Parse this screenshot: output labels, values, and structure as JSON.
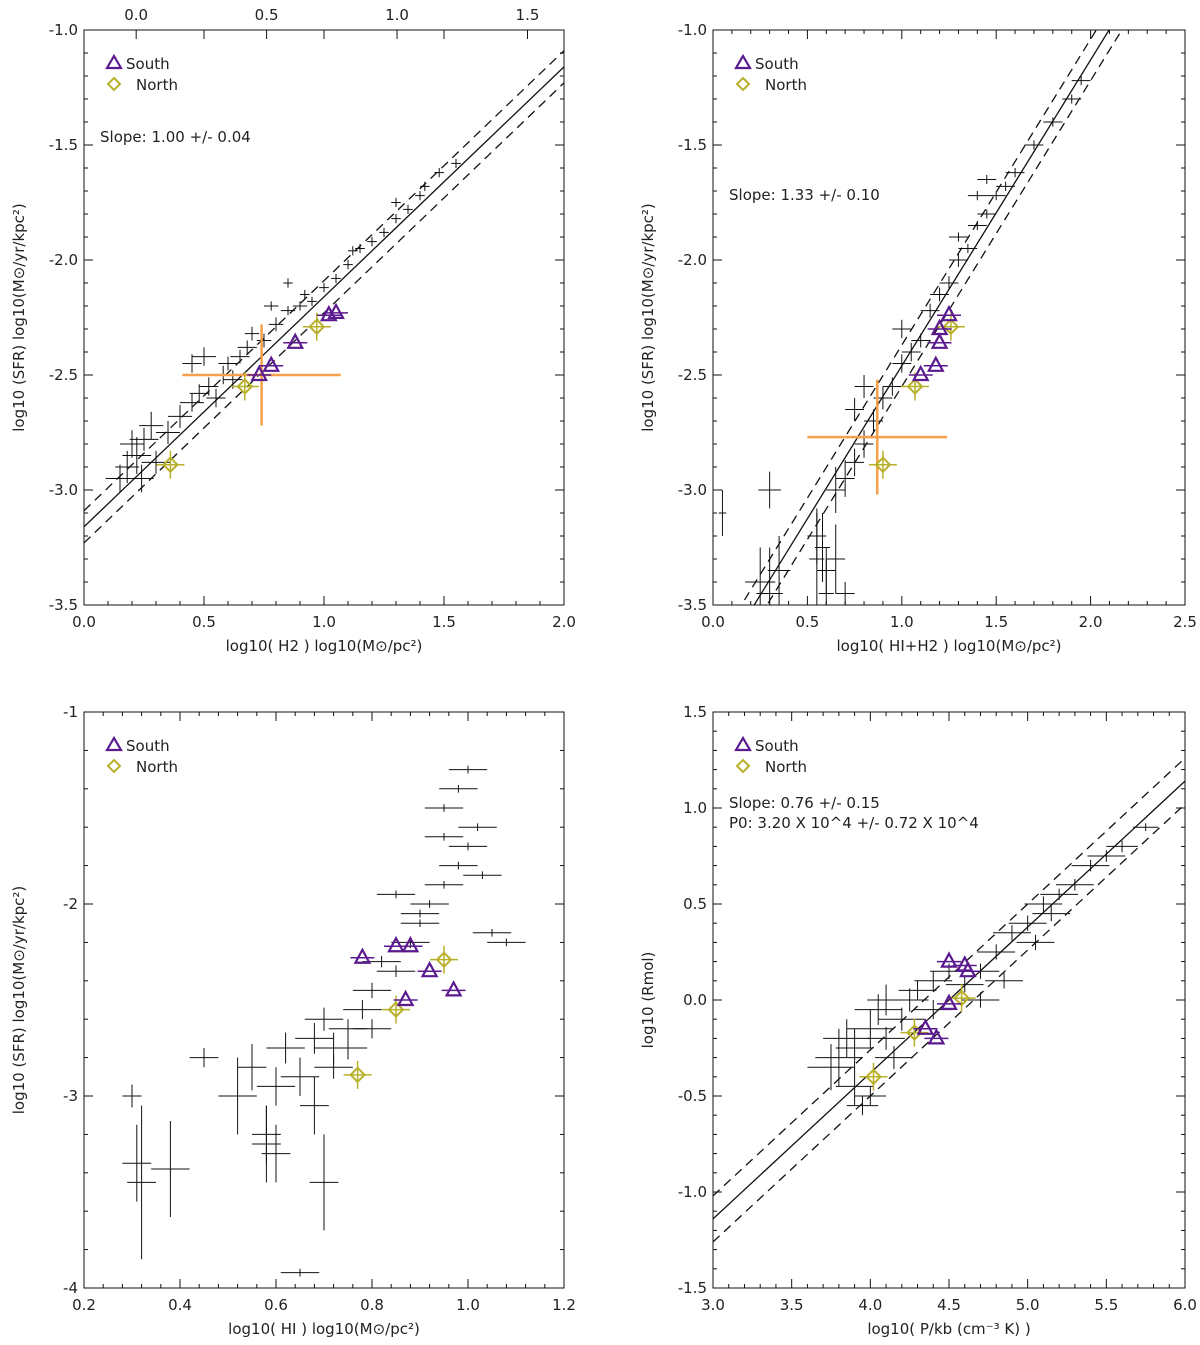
{
  "colors": {
    "south": "#5b1a8f",
    "north": "#b8b02a",
    "highlight": "#f5a04a",
    "data": "#111111"
  },
  "chart_data": [
    {
      "id": "p1",
      "type": "scatter",
      "title": "",
      "xlabel": "log10( H2 )  log10(M⊙/pc²)",
      "ylabel": "log10 (SFR)  log10(M⊙/yr/kpc²)",
      "xlim": [
        0.0,
        2.0
      ],
      "ylim": [
        -3.5,
        -1.0
      ],
      "xticks": [
        "0.0",
        "0.5",
        "1.0",
        "1.5",
        "2.0"
      ],
      "yticks": [
        "-3.5",
        "-3.0",
        "-2.5",
        "-2.0",
        "-1.5",
        "-1.0"
      ],
      "top_axis": {
        "xlim": [
          -0.2,
          1.64
        ],
        "ticks": [
          "0.0",
          "0.5",
          "1.0",
          "1.5"
        ]
      },
      "legend": [
        "South",
        "North"
      ],
      "annotation": [
        "Slope: 1.00 +/- 0.04"
      ],
      "fit": {
        "slope": 1.0,
        "intercept": -3.16,
        "spread": 0.07
      },
      "south": [
        [
          0.73,
          -2.5
        ],
        [
          0.78,
          -2.46
        ],
        [
          0.88,
          -2.36
        ],
        [
          1.02,
          -2.24
        ],
        [
          1.05,
          -2.23
        ]
      ],
      "north": [
        [
          0.36,
          -2.89
        ],
        [
          0.67,
          -2.55
        ],
        [
          0.97,
          -2.29
        ]
      ],
      "highlight": {
        "x": 0.74,
        "y": -2.5,
        "xerr": 0.33,
        "yerr": 0.22
      },
      "points": [
        [
          0.2,
          -2.8,
          0.05,
          0.06
        ],
        [
          0.22,
          -2.85,
          0.06,
          0.08
        ],
        [
          0.18,
          -2.9,
          0.05,
          0.07
        ],
        [
          0.25,
          -2.78,
          0.06,
          0.05
        ],
        [
          0.15,
          -2.95,
          0.06,
          0.06
        ],
        [
          0.28,
          -2.72,
          0.05,
          0.06
        ],
        [
          0.3,
          -2.88,
          0.06,
          0.05
        ],
        [
          0.24,
          -2.95,
          0.05,
          0.06
        ],
        [
          0.35,
          -2.75,
          0.05,
          0.05
        ],
        [
          0.4,
          -2.68,
          0.05,
          0.05
        ],
        [
          0.45,
          -2.62,
          0.05,
          0.04
        ],
        [
          0.48,
          -2.58,
          0.04,
          0.04
        ],
        [
          0.52,
          -2.55,
          0.04,
          0.04
        ],
        [
          0.55,
          -2.6,
          0.04,
          0.04
        ],
        [
          0.58,
          -2.5,
          0.04,
          0.04
        ],
        [
          0.6,
          -2.45,
          0.04,
          0.03
        ],
        [
          0.62,
          -2.52,
          0.04,
          0.04
        ],
        [
          0.65,
          -2.42,
          0.04,
          0.03
        ],
        [
          0.5,
          -2.42,
          0.05,
          0.04
        ],
        [
          0.45,
          -2.45,
          0.04,
          0.04
        ],
        [
          0.68,
          -2.38,
          0.04,
          0.03
        ],
        [
          0.7,
          -2.32,
          0.03,
          0.03
        ],
        [
          0.75,
          -2.35,
          0.03,
          0.03
        ],
        [
          0.8,
          -2.28,
          0.03,
          0.03
        ],
        [
          0.85,
          -2.22,
          0.03,
          0.02
        ],
        [
          0.9,
          -2.2,
          0.03,
          0.02
        ],
        [
          0.92,
          -2.15,
          0.02,
          0.02
        ],
        [
          0.95,
          -2.18,
          0.02,
          0.02
        ],
        [
          1.0,
          -2.12,
          0.02,
          0.02
        ],
        [
          1.05,
          -2.08,
          0.02,
          0.02
        ],
        [
          1.1,
          -2.02,
          0.02,
          0.02
        ],
        [
          1.12,
          -1.96,
          0.02,
          0.02
        ],
        [
          1.15,
          -1.95,
          0.02,
          0.02
        ],
        [
          1.2,
          -1.92,
          0.02,
          0.02
        ],
        [
          1.25,
          -1.88,
          0.02,
          0.02
        ],
        [
          1.3,
          -1.82,
          0.02,
          0.02
        ],
        [
          1.35,
          -1.78,
          0.02,
          0.02
        ],
        [
          1.4,
          -1.72,
          0.02,
          0.02
        ],
        [
          1.42,
          -1.68,
          0.02,
          0.02
        ],
        [
          1.48,
          -1.62,
          0.02,
          0.02
        ],
        [
          1.55,
          -1.58,
          0.02,
          0.02
        ],
        [
          1.3,
          -1.75,
          0.02,
          0.02
        ],
        [
          0.85,
          -2.1,
          0.02,
          0.02
        ],
        [
          0.78,
          -2.2,
          0.03,
          0.02
        ]
      ]
    },
    {
      "id": "p2",
      "type": "scatter",
      "title": "",
      "xlabel": "log10( HI+H2 )  log10(M⊙/pc²)",
      "ylabel": "log10 (SFR)  log10(M⊙/yr/kpc²)",
      "xlim": [
        0.0,
        2.5
      ],
      "ylim": [
        -3.5,
        -1.0
      ],
      "xticks": [
        "0.0",
        "0.5",
        "1.0",
        "1.5",
        "2.0",
        "2.5"
      ],
      "yticks": [
        "-3.5",
        "-3.0",
        "-2.5",
        "-2.0",
        "-1.5",
        "-1.0"
      ],
      "legend": [
        "South",
        "North"
      ],
      "annotation": [
        "Slope: 1.33 +/- 0.10"
      ],
      "fit": {
        "slope": 1.33,
        "intercept": -3.79,
        "spread": 0.09
      },
      "south": [
        [
          1.1,
          -2.5
        ],
        [
          1.18,
          -2.46
        ],
        [
          1.2,
          -2.36
        ],
        [
          1.2,
          -2.3
        ],
        [
          1.25,
          -2.24
        ]
      ],
      "north": [
        [
          0.9,
          -2.89
        ],
        [
          1.07,
          -2.55
        ],
        [
          1.26,
          -2.29
        ]
      ],
      "highlight": {
        "x": 0.87,
        "y": -2.77,
        "xerr": 0.37,
        "yerr": 0.25
      },
      "points": [
        [
          0.05,
          -3.1,
          0.02,
          0.1
        ],
        [
          0.3,
          -3.0,
          0.06,
          0.08
        ],
        [
          0.25,
          -3.4,
          0.08,
          0.15
        ],
        [
          0.3,
          -3.45,
          0.07,
          0.2
        ],
        [
          0.35,
          -3.35,
          0.06,
          0.15
        ],
        [
          0.55,
          -3.2,
          0.05,
          0.12
        ],
        [
          0.58,
          -3.25,
          0.04,
          0.15
        ],
        [
          0.6,
          -3.35,
          0.05,
          0.1
        ],
        [
          0.65,
          -3.3,
          0.05,
          0.15
        ],
        [
          0.7,
          -3.45,
          0.05,
          0.05
        ],
        [
          0.55,
          -3.3,
          0.04,
          0.2
        ],
        [
          0.6,
          -3.45,
          0.04,
          0.15
        ],
        [
          0.65,
          -3.0,
          0.05,
          0.1
        ],
        [
          0.7,
          -2.95,
          0.05,
          0.08
        ],
        [
          0.75,
          -2.88,
          0.05,
          0.06
        ],
        [
          0.8,
          -2.8,
          0.05,
          0.06
        ],
        [
          0.85,
          -2.7,
          0.05,
          0.05
        ],
        [
          0.9,
          -2.6,
          0.05,
          0.05
        ],
        [
          0.95,
          -2.55,
          0.05,
          0.04
        ],
        [
          1.0,
          -2.45,
          0.05,
          0.04
        ],
        [
          1.05,
          -2.4,
          0.05,
          0.04
        ],
        [
          1.1,
          -2.35,
          0.05,
          0.03
        ],
        [
          1.15,
          -2.22,
          0.05,
          0.03
        ],
        [
          1.2,
          -2.15,
          0.05,
          0.03
        ],
        [
          1.25,
          -2.1,
          0.05,
          0.03
        ],
        [
          1.3,
          -2.0,
          0.05,
          0.03
        ],
        [
          1.35,
          -1.95,
          0.05,
          0.02
        ],
        [
          1.4,
          -1.85,
          0.05,
          0.02
        ],
        [
          1.45,
          -1.8,
          0.05,
          0.02
        ],
        [
          1.5,
          -1.72,
          0.05,
          0.02
        ],
        [
          1.55,
          -1.68,
          0.05,
          0.02
        ],
        [
          1.6,
          -1.62,
          0.05,
          0.02
        ],
        [
          1.7,
          -1.5,
          0.05,
          0.02
        ],
        [
          1.8,
          -1.4,
          0.05,
          0.02
        ],
        [
          1.9,
          -1.3,
          0.05,
          0.02
        ],
        [
          1.95,
          -1.22,
          0.05,
          0.02
        ],
        [
          0.75,
          -2.65,
          0.05,
          0.05
        ],
        [
          0.8,
          -2.55,
          0.05,
          0.05
        ],
        [
          1.0,
          -2.3,
          0.05,
          0.04
        ],
        [
          1.3,
          -1.9,
          0.05,
          0.02
        ],
        [
          1.45,
          -1.65,
          0.05,
          0.02
        ],
        [
          1.4,
          -1.72,
          0.05,
          0.02
        ]
      ]
    },
    {
      "id": "p3",
      "type": "scatter",
      "title": "",
      "xlabel": "log10( HI )  log10(M⊙/pc²)",
      "ylabel": "log10 (SFR)  log10(M⊙/yr/kpc²)",
      "xlim": [
        0.2,
        1.2
      ],
      "ylim": [
        -4.0,
        -1.0
      ],
      "xticks": [
        "0.2",
        "0.4",
        "0.6",
        "0.8",
        "1.0",
        "1.2"
      ],
      "yticks": [
        "-4",
        "-3",
        "-2",
        "-1"
      ],
      "legend": [
        "South",
        "North"
      ],
      "annotation": [],
      "fit": null,
      "south": [
        [
          0.78,
          -2.28
        ],
        [
          0.85,
          -2.22
        ],
        [
          0.88,
          -2.22
        ],
        [
          0.92,
          -2.35
        ],
        [
          0.97,
          -2.45
        ],
        [
          0.87,
          -2.5
        ]
      ],
      "north": [
        [
          0.77,
          -2.89
        ],
        [
          0.85,
          -2.55
        ],
        [
          0.95,
          -2.29
        ]
      ],
      "highlight": null,
      "points": [
        [
          0.3,
          -3.0,
          0.02,
          0.06
        ],
        [
          0.31,
          -3.35,
          0.03,
          0.2
        ],
        [
          0.32,
          -3.45,
          0.03,
          0.4
        ],
        [
          0.38,
          -3.38,
          0.04,
          0.25
        ],
        [
          0.45,
          -2.8,
          0.03,
          0.05
        ],
        [
          0.52,
          -3.0,
          0.04,
          0.2
        ],
        [
          0.55,
          -2.85,
          0.03,
          0.12
        ],
        [
          0.58,
          -3.2,
          0.03,
          0.15
        ],
        [
          0.58,
          -3.25,
          0.03,
          0.2
        ],
        [
          0.6,
          -3.3,
          0.03,
          0.15
        ],
        [
          0.6,
          -2.95,
          0.04,
          0.1
        ],
        [
          0.62,
          -2.75,
          0.04,
          0.08
        ],
        [
          0.65,
          -2.9,
          0.04,
          0.1
        ],
        [
          0.68,
          -3.05,
          0.03,
          0.15
        ],
        [
          0.7,
          -3.45,
          0.03,
          0.25
        ],
        [
          0.65,
          -3.92,
          0.04,
          0.02
        ],
        [
          0.68,
          -2.7,
          0.04,
          0.08
        ],
        [
          0.7,
          -2.6,
          0.04,
          0.06
        ],
        [
          0.72,
          -2.75,
          0.04,
          0.08
        ],
        [
          0.75,
          -2.65,
          0.04,
          0.05
        ],
        [
          0.78,
          -2.55,
          0.04,
          0.05
        ],
        [
          0.8,
          -2.45,
          0.04,
          0.04
        ],
        [
          0.82,
          -2.3,
          0.04,
          0.03
        ],
        [
          0.85,
          -2.35,
          0.04,
          0.03
        ],
        [
          0.88,
          -2.2,
          0.04,
          0.03
        ],
        [
          0.9,
          -2.1,
          0.04,
          0.02
        ],
        [
          0.92,
          -2.0,
          0.04,
          0.02
        ],
        [
          0.95,
          -1.9,
          0.04,
          0.02
        ],
        [
          0.98,
          -1.8,
          0.04,
          0.02
        ],
        [
          1.0,
          -1.7,
          0.04,
          0.02
        ],
        [
          1.02,
          -1.6,
          0.04,
          0.02
        ],
        [
          0.95,
          -1.5,
          0.04,
          0.02
        ],
        [
          0.98,
          -1.4,
          0.04,
          0.02
        ],
        [
          1.0,
          -1.3,
          0.04,
          0.02
        ],
        [
          1.05,
          -2.15,
          0.04,
          0.02
        ],
        [
          1.08,
          -2.2,
          0.04,
          0.02
        ],
        [
          0.9,
          -2.05,
          0.04,
          0.02
        ],
        [
          0.85,
          -1.95,
          0.04,
          0.02
        ],
        [
          0.95,
          -1.65,
          0.04,
          0.02
        ],
        [
          1.03,
          -1.85,
          0.04,
          0.02
        ],
        [
          0.75,
          -2.75,
          0.04,
          0.06
        ],
        [
          0.72,
          -2.85,
          0.04,
          0.06
        ],
        [
          0.8,
          -2.65,
          0.04,
          0.05
        ]
      ]
    },
    {
      "id": "p4",
      "type": "scatter",
      "title": "",
      "xlabel": "log10( P/kb (cm⁻³ K) )",
      "ylabel": "log10 (Rmol)",
      "xlim": [
        3.0,
        6.0
      ],
      "ylim": [
        -1.5,
        1.5
      ],
      "xticks": [
        "3.0",
        "3.5",
        "4.0",
        "4.5",
        "5.0",
        "5.5",
        "6.0"
      ],
      "yticks": [
        "-1.5",
        "-1.0",
        "-0.5",
        "0.0",
        "0.5",
        "1.0",
        "1.5"
      ],
      "legend": [
        "South",
        "North"
      ],
      "annotation": [
        "Slope: 0.76 +/- 0.15",
        "P0: 3.20 X 10^4 +/- 0.72 X 10^4"
      ],
      "fit": {
        "slope": 0.76,
        "intercept": -3.42,
        "spread": 0.12
      },
      "south": [
        [
          4.5,
          0.2
        ],
        [
          4.6,
          0.18
        ],
        [
          4.62,
          0.15
        ],
        [
          4.5,
          -0.02
        ],
        [
          4.35,
          -0.15
        ],
        [
          4.42,
          -0.2
        ]
      ],
      "north": [
        [
          4.02,
          -0.4
        ],
        [
          4.28,
          -0.17
        ],
        [
          4.58,
          0.01
        ]
      ],
      "highlight": null,
      "points": [
        [
          3.8,
          -0.3,
          0.15,
          0.15
        ],
        [
          3.9,
          -0.45,
          0.12,
          0.1
        ],
        [
          3.85,
          -0.2,
          0.15,
          0.1
        ],
        [
          3.95,
          -0.55,
          0.1,
          0.05
        ],
        [
          4.0,
          -0.15,
          0.15,
          0.1
        ],
        [
          4.05,
          -0.05,
          0.15,
          0.08
        ],
        [
          4.1,
          0.0,
          0.12,
          0.08
        ],
        [
          4.2,
          -0.1,
          0.15,
          0.06
        ],
        [
          4.25,
          0.0,
          0.12,
          0.06
        ],
        [
          4.3,
          0.05,
          0.12,
          0.05
        ],
        [
          4.4,
          0.1,
          0.12,
          0.05
        ],
        [
          4.5,
          0.15,
          0.12,
          0.04
        ],
        [
          4.6,
          0.08,
          0.12,
          0.04
        ],
        [
          4.7,
          0.15,
          0.12,
          0.04
        ],
        [
          4.8,
          0.25,
          0.12,
          0.04
        ],
        [
          4.9,
          0.35,
          0.12,
          0.04
        ],
        [
          5.0,
          0.4,
          0.12,
          0.04
        ],
        [
          5.1,
          0.5,
          0.12,
          0.04
        ],
        [
          5.2,
          0.55,
          0.12,
          0.03
        ],
        [
          5.3,
          0.6,
          0.12,
          0.03
        ],
        [
          5.4,
          0.7,
          0.12,
          0.03
        ],
        [
          5.5,
          0.75,
          0.12,
          0.03
        ],
        [
          5.6,
          0.8,
          0.1,
          0.03
        ],
        [
          5.75,
          0.9,
          0.08,
          0.02
        ],
        [
          3.75,
          -0.35,
          0.15,
          0.12
        ],
        [
          3.9,
          -0.25,
          0.12,
          0.1
        ],
        [
          4.1,
          -0.2,
          0.12,
          0.06
        ],
        [
          4.15,
          -0.3,
          0.12,
          0.06
        ],
        [
          4.7,
          0.0,
          0.12,
          0.04
        ],
        [
          4.85,
          0.1,
          0.12,
          0.04
        ],
        [
          5.05,
          0.3,
          0.12,
          0.04
        ],
        [
          5.15,
          0.45,
          0.12,
          0.04
        ],
        [
          4.0,
          -0.5,
          0.1,
          0.05
        ],
        [
          4.4,
          -0.05,
          0.12,
          0.05
        ]
      ]
    }
  ]
}
